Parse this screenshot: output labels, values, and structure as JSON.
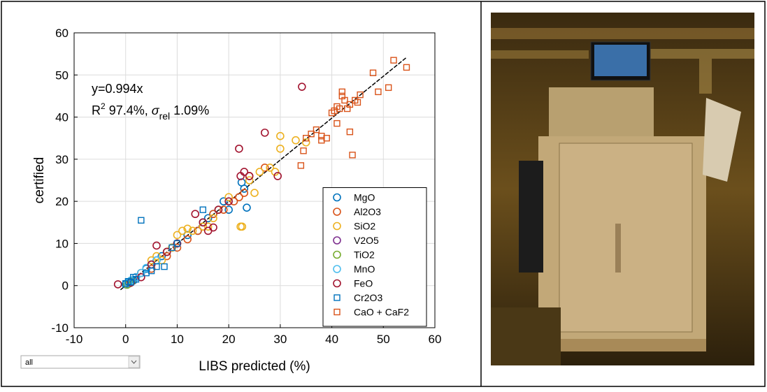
{
  "chart_data": {
    "type": "scatter",
    "xlabel": "LIBS predicted (%)",
    "ylabel": "certified",
    "annotations": [
      "y=0.994x",
      "R",
      "2",
      " 97.4%, ",
      "σ",
      "rel",
      " 1.09%"
    ],
    "xlim": [
      -10,
      60
    ],
    "xticks": [
      -10,
      0,
      10,
      20,
      30,
      40,
      50,
      60
    ],
    "ylim": [
      -10,
      60
    ],
    "yticks": [
      -10,
      0,
      10,
      20,
      30,
      40,
      50,
      60
    ],
    "grid": true,
    "legend": "lower right",
    "fit_line": {
      "color": "#000000",
      "x": [
        -1,
        54.5
      ],
      "y": [
        -0.994,
        54.17
      ]
    },
    "series": [
      {
        "name": "MgO",
        "color": "#0072bd",
        "marker": "circle",
        "x": [
          0,
          0.5,
          1,
          1.5,
          2,
          3,
          4,
          5,
          6,
          7,
          8,
          9,
          10,
          12,
          14,
          15,
          16,
          17,
          18,
          19,
          20,
          22.5,
          23.5,
          23
        ],
        "values": [
          0.3,
          0.8,
          1,
          1.2,
          2,
          3,
          4,
          5,
          6,
          7,
          8,
          9,
          10,
          12,
          13,
          15,
          16,
          17,
          18,
          20,
          18,
          24.5,
          18.5,
          23
        ]
      },
      {
        "name": "Al2O3",
        "color": "#d95319",
        "marker": "circle",
        "x": [
          1,
          2,
          3,
          5,
          8,
          10,
          12,
          14,
          15,
          17,
          19,
          21,
          22,
          23,
          24,
          27
        ],
        "values": [
          1,
          2,
          3,
          4,
          7,
          9,
          11,
          13,
          14,
          17,
          18,
          20,
          21,
          22,
          26,
          28
        ]
      },
      {
        "name": "SiO2",
        "color": "#edb120",
        "marker": "circle",
        "x": [
          5,
          6,
          7,
          8,
          9,
          10,
          11,
          12,
          13,
          15,
          16,
          17,
          18,
          20,
          22.3,
          22.6,
          24,
          25,
          26,
          28,
          29,
          30,
          30,
          33,
          35
        ],
        "values": [
          6,
          7,
          6,
          8,
          9,
          12,
          13,
          13.5,
          13,
          14,
          14,
          16,
          18,
          21,
          14,
          14,
          25,
          22,
          27,
          28,
          27,
          35.5,
          32.5,
          34.5,
          34
        ]
      },
      {
        "name": "V2O5",
        "color": "#7e2f8e",
        "marker": "circle",
        "x": [
          0.5,
          1,
          2
        ],
        "values": [
          0.5,
          1,
          2
        ]
      },
      {
        "name": "TiO2",
        "color": "#77ac30",
        "marker": "circle",
        "x": [
          0.3,
          0.7,
          1.2
        ],
        "values": [
          0.2,
          0.5,
          1
        ]
      },
      {
        "name": "MnO",
        "color": "#4dbeee",
        "marker": "circle",
        "x": [
          0.5,
          1,
          2,
          3,
          4,
          5,
          6
        ],
        "values": [
          0.6,
          1.2,
          2,
          3,
          4.2,
          5,
          6
        ]
      },
      {
        "name": "FeO",
        "color": "#a2142f",
        "marker": "circle",
        "x": [
          -1.5,
          1,
          3,
          5,
          6,
          8,
          10,
          13.5,
          15,
          16,
          17,
          18,
          20,
          22,
          22.3,
          23,
          24,
          27,
          29.5,
          34.2
        ],
        "values": [
          0.3,
          0.7,
          2,
          5,
          9.5,
          8,
          10,
          17,
          15,
          13,
          13.8,
          18,
          20,
          32.5,
          26,
          27,
          26,
          36.3,
          26,
          47.2
        ]
      },
      {
        "name": "Cr2O3",
        "color": "#0072bd",
        "marker": "square",
        "x": [
          0,
          0.5,
          1,
          1.5,
          2,
          3,
          4,
          5,
          6,
          7.5,
          9,
          10,
          15
        ],
        "values": [
          0.5,
          1,
          0.8,
          2,
          1.5,
          15.5,
          3,
          3.5,
          4.5,
          4.5,
          9,
          10,
          18
        ]
      },
      {
        "name": "CaO + CaF2",
        "color": "#d95319",
        "marker": "square",
        "x": [
          34,
          34.5,
          35,
          36,
          37,
          38,
          39,
          40,
          40.5,
          41,
          41.5,
          42,
          42.5,
          43,
          43.5,
          44,
          44.5,
          45,
          45.5,
          48,
          49,
          51,
          52,
          54.5,
          42,
          43.5,
          38,
          41
        ],
        "values": [
          28.5,
          32,
          35,
          36,
          37,
          35.5,
          35,
          41,
          41.5,
          38.5,
          42,
          46,
          44,
          42,
          36.5,
          31,
          44,
          43.5,
          45.3,
          50.5,
          46,
          47,
          53.5,
          51.8,
          45,
          43,
          34.5,
          42.5
        ]
      }
    ]
  },
  "dropdown": {
    "selected": "all"
  }
}
